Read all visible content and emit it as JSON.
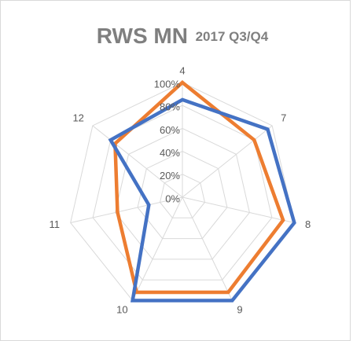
{
  "chart_data": {
    "type": "radar",
    "title": "RWS MN",
    "subtitle": "2017 Q3/Q4",
    "categories": [
      "4",
      "7",
      "8",
      "9",
      "10",
      "11",
      "12"
    ],
    "series": [
      {
        "color": "#ED7D31",
        "values": [
          100,
          80,
          90,
          92,
          92,
          58,
          75
        ]
      },
      {
        "color": "#4472C4",
        "values": [
          85,
          95,
          100,
          100,
          100,
          30,
          80
        ]
      }
    ],
    "ylim": [
      0,
      100
    ],
    "yticks": [
      {
        "value": 0,
        "label": "0%"
      },
      {
        "value": 20,
        "label": "20%"
      },
      {
        "value": 40,
        "label": "40%"
      },
      {
        "value": 60,
        "label": "60%"
      },
      {
        "value": 80,
        "label": "80%"
      },
      {
        "value": 100,
        "label": "100%"
      }
    ],
    "grid": true
  }
}
